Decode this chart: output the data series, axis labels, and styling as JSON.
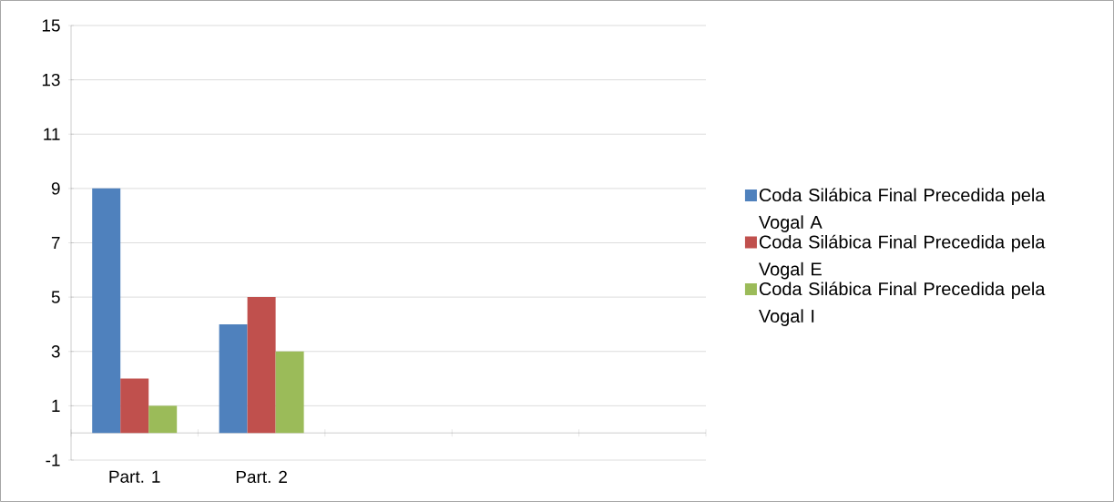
{
  "chart_data": {
    "type": "bar",
    "categories": [
      "Part. 1",
      "Part. 2",
      null,
      null,
      null
    ],
    "series": [
      {
        "name": "Coda Silábica Final Precedida pela Vogal A",
        "color": "#4f81bd",
        "values": [
          9,
          4,
          null,
          null,
          null
        ]
      },
      {
        "name": "Coda Silábica Final Precedida pela Vogal E",
        "color": "#c0504d",
        "values": [
          2,
          5,
          null,
          null,
          null
        ]
      },
      {
        "name": "Coda Silábica Final Precedida pela Vogal I",
        "color": "#9bbb59",
        "values": [
          1,
          3,
          null,
          null,
          null
        ]
      }
    ],
    "ylim": [
      -1,
      15
    ],
    "yticks": [
      -1,
      1,
      3,
      5,
      7,
      9,
      11,
      13,
      15
    ],
    "grid": "y",
    "legend": "right"
  }
}
